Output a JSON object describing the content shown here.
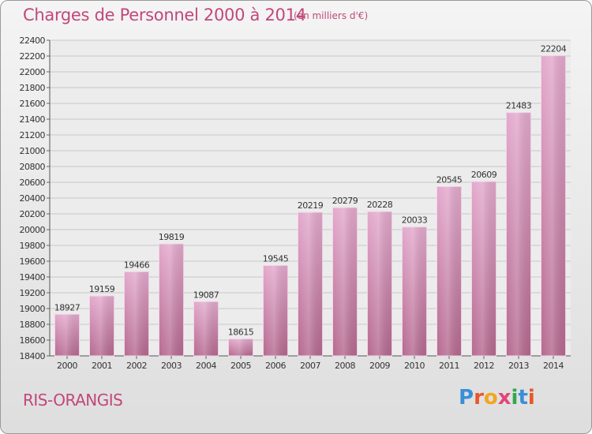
{
  "header": {
    "title": "Charges de Personnel 2000 à 2014",
    "unit": "(en milliers d'€)"
  },
  "footer": {
    "city": "RIS-ORANGIS",
    "logo": "Proxiti"
  },
  "colors": {
    "title": "#c2477a",
    "bar_top": "#e3a9cd",
    "bar_bottom": "#b5698f"
  },
  "chart_data": {
    "type": "bar",
    "title": "Charges de Personnel 2000 à 2014",
    "subtitle": "(en milliers d'€)",
    "xlabel": "",
    "ylabel": "",
    "categories": [
      "2000",
      "2001",
      "2002",
      "2003",
      "2004",
      "2005",
      "2006",
      "2007",
      "2008",
      "2009",
      "2010",
      "2011",
      "2012",
      "2013",
      "2014"
    ],
    "values": [
      18927,
      19159,
      19466,
      19819,
      19087,
      18615,
      19545,
      20219,
      20279,
      20228,
      20033,
      20545,
      20609,
      21483,
      22204
    ],
    "ylim": [
      18400,
      22400
    ],
    "yticks": [
      18400,
      18600,
      18800,
      19000,
      19200,
      19400,
      19600,
      19800,
      20000,
      20200,
      20400,
      20600,
      20800,
      21000,
      21200,
      21400,
      21600,
      21800,
      22000,
      22200,
      22400
    ],
    "grid": true,
    "data_labels": true
  }
}
